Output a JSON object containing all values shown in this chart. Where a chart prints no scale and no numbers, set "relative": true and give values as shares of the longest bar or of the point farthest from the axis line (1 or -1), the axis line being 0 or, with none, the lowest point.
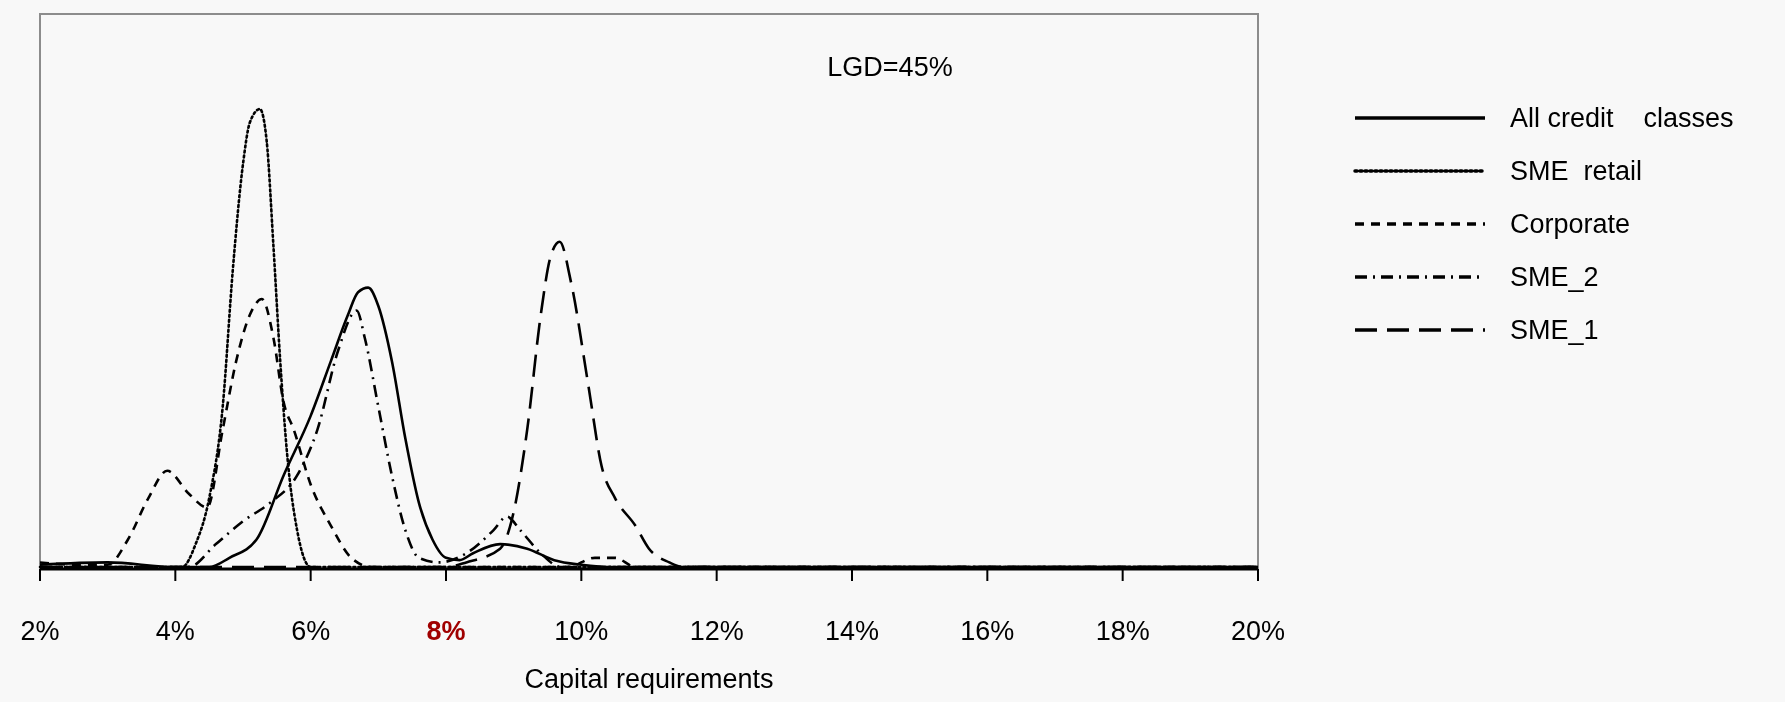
{
  "chart_data": {
    "type": "line",
    "xlabel": "Capital requirements",
    "relative": true,
    "xlim": [
      2,
      20
    ],
    "xticks": [
      {
        "value": 2,
        "label": "2%"
      },
      {
        "value": 4,
        "label": "4%"
      },
      {
        "value": 6,
        "label": "6%"
      },
      {
        "value": 8,
        "label": "8%"
      },
      {
        "value": 10,
        "label": "10%"
      },
      {
        "value": 12,
        "label": "12%"
      },
      {
        "value": 14,
        "label": "14%"
      },
      {
        "value": 16,
        "label": "16%"
      },
      {
        "value": 18,
        "label": "18%"
      },
      {
        "value": 20,
        "label": "20%"
      }
    ],
    "annotations": [
      "LGD=45%"
    ],
    "legend": "right",
    "grid": false,
    "marker": "none",
    "series": [
      {
        "name": "All credit    classes",
        "color": "#000000",
        "line_style": "solid",
        "x": [
          2,
          3,
          4,
          4.5,
          4.8,
          5.2,
          5.6,
          6,
          6.3,
          6.55,
          6.7,
          6.85,
          7,
          7.2,
          7.4,
          7.6,
          7.8,
          8,
          8.2,
          8.4,
          8.8,
          9.2,
          9.6,
          10,
          10.5,
          20
        ],
        "values": [
          0.005,
          0.01,
          0,
          0,
          0.02,
          0.06,
          0.2,
          0.33,
          0.45,
          0.55,
          0.6,
          0.61,
          0.57,
          0.45,
          0.28,
          0.14,
          0.06,
          0.02,
          0.015,
          0.03,
          0.05,
          0.04,
          0.015,
          0.005,
          0,
          0
        ]
      },
      {
        "name": "SME  retail",
        "color": "#000000",
        "line_style": "dotted",
        "x": [
          2,
          4.1,
          4.3,
          4.5,
          4.7,
          4.85,
          5,
          5.1,
          5.25,
          5.35,
          5.45,
          5.55,
          5.65,
          5.8,
          6,
          20
        ],
        "values": [
          0,
          0,
          0.05,
          0.15,
          0.35,
          0.65,
          0.88,
          0.97,
          1,
          0.93,
          0.7,
          0.45,
          0.25,
          0.08,
          0,
          0
        ]
      },
      {
        "name": "Corporate",
        "color": "#000000",
        "line_style": "dashed",
        "x": [
          2,
          2.5,
          3,
          3.3,
          3.6,
          3.88,
          4.2,
          4.47,
          4.7,
          4.9,
          5.1,
          5.28,
          5.45,
          5.6,
          5.75,
          6,
          6.3,
          6.6,
          6.9,
          9.8,
          10.2,
          10.5,
          10.8,
          20
        ],
        "values": [
          0.01,
          0.005,
          0.005,
          0.06,
          0.15,
          0.21,
          0.16,
          0.13,
          0.3,
          0.45,
          0.55,
          0.585,
          0.5,
          0.36,
          0.3,
          0.18,
          0.09,
          0.02,
          0,
          0,
          0.02,
          0.02,
          0,
          0
        ]
      },
      {
        "name": "SME_2",
        "color": "#000000",
        "line_style": "dashed",
        "x": [
          2,
          4.2,
          4.6,
          5,
          5.4,
          5.8,
          6.1,
          6.4,
          6.68,
          6.8,
          7,
          7.2,
          7.4,
          7.6,
          7.9,
          8.3,
          8.7,
          8.9,
          9.1,
          9.4,
          9.7,
          20
        ],
        "values": [
          0,
          0,
          0.05,
          0.1,
          0.14,
          0.2,
          0.3,
          0.47,
          0.56,
          0.5,
          0.35,
          0.2,
          0.08,
          0.02,
          0.01,
          0.03,
          0.08,
          0.11,
          0.08,
          0.03,
          0,
          0
        ]
      },
      {
        "name": "SME_1",
        "color": "#000000",
        "line_style": "dashed",
        "x": [
          2,
          8,
          8.3,
          8.8,
          9,
          9.2,
          9.4,
          9.55,
          9.68,
          9.85,
          10.1,
          10.3,
          10.5,
          10.8,
          11,
          11.3,
          11.5,
          20
        ],
        "values": [
          0,
          0,
          0.01,
          0.04,
          0.12,
          0.3,
          0.55,
          0.68,
          0.71,
          0.62,
          0.4,
          0.22,
          0.15,
          0.09,
          0.04,
          0.01,
          0,
          0
        ]
      }
    ]
  }
}
